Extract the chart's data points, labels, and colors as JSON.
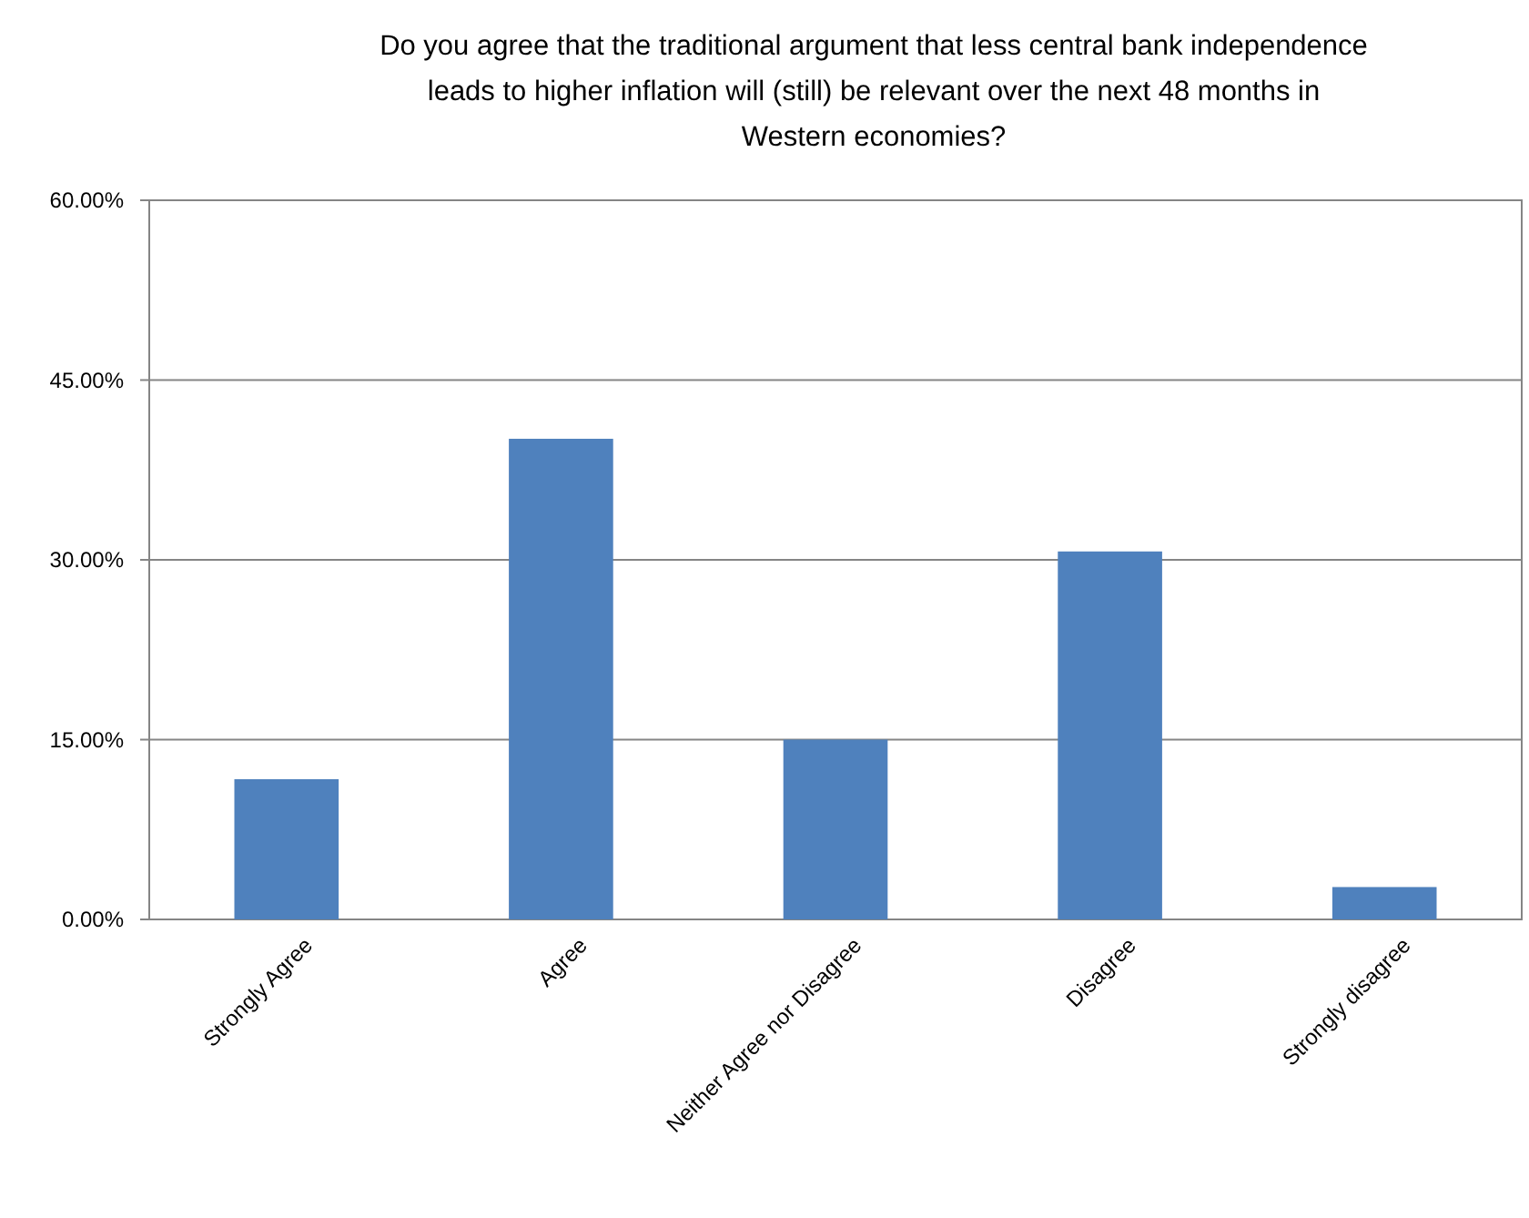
{
  "chart_data": {
    "type": "bar",
    "title": "Do you agree that the traditional argument that less central bank independence leads to higher inflation will (still) be relevant over the next 48 months in Western economies?",
    "categories": [
      "Strongly Agree",
      "Agree",
      "Neither Agree nor Disagree",
      "Disagree",
      "Strongly disagree"
    ],
    "values": [
      11.7,
      40.1,
      15.0,
      30.7,
      2.7
    ],
    "color": "#4f81bd",
    "ylim": [
      0,
      60
    ],
    "yticks": [
      {
        "value": 0,
        "label": "0.00%"
      },
      {
        "value": 15,
        "label": "15.00%"
      },
      {
        "value": 30,
        "label": "30.00%"
      },
      {
        "value": 45,
        "label": "45.00%"
      },
      {
        "value": 60,
        "label": "60.00%"
      }
    ],
    "grid": "y"
  }
}
